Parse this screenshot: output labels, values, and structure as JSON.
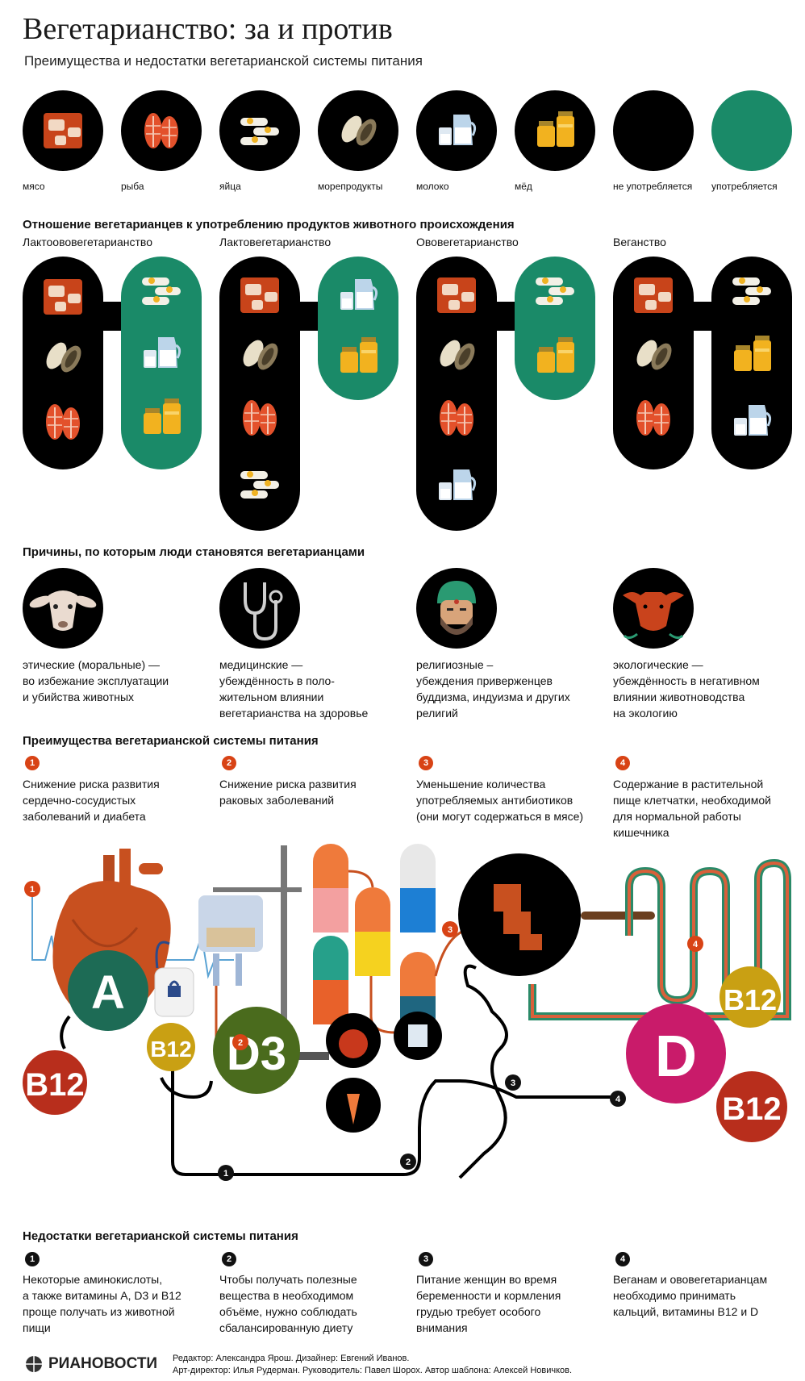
{
  "title": "Вегетарианство: за и против",
  "subtitle": "Преимущества и недостатки вегетарианской системы питания",
  "legend": {
    "items": [
      {
        "label": "мясо",
        "icon": "meat-icon"
      },
      {
        "label": "рыба",
        "icon": "fish-icon"
      },
      {
        "label": "яйца",
        "icon": "eggs-icon"
      },
      {
        "label": "морепродукты",
        "icon": "seafood-icon"
      },
      {
        "label": "молоко",
        "icon": "milk-icon"
      },
      {
        "label": "мёд",
        "icon": "honey-icon"
      },
      {
        "label": "не употребляется",
        "icon": "black-circle",
        "color": "#000000"
      },
      {
        "label": "употребляется",
        "icon": "green-circle",
        "color": "#1a8a68"
      }
    ]
  },
  "attitude": {
    "heading": "Отношение вегетарианцев к употреблению продуктов животного происхождения",
    "types": [
      {
        "name": "Лактоововегетарианство",
        "excluded": [
          "meat",
          "seafood",
          "fish"
        ],
        "included": [
          "eggs",
          "milk",
          "honey"
        ]
      },
      {
        "name": "Лактовегетарианство",
        "excluded": [
          "meat",
          "seafood",
          "fish",
          "eggs"
        ],
        "included": [
          "milk",
          "honey"
        ]
      },
      {
        "name": "Ововегетарианство",
        "excluded": [
          "meat",
          "seafood",
          "fish",
          "milk"
        ],
        "included": [
          "eggs",
          "honey"
        ]
      },
      {
        "name": "Веганство",
        "excluded": [
          "meat",
          "seafood",
          "fish"
        ],
        "included": [
          "eggs",
          "honey",
          "milk"
        ]
      }
    ]
  },
  "reasons": {
    "heading": "Причины, по которым люди становятся вегетарианцами",
    "items": [
      {
        "icon": "lamb-icon",
        "lines": [
          "этические (моральные) —",
          "во избежание эксплуатации",
          "и убийства животных"
        ]
      },
      {
        "icon": "stethoscope-icon",
        "lines": [
          "медицинские —",
          "убеждённость в поло-",
          "жительном влиянии",
          "вегетарианства на здоровье"
        ]
      },
      {
        "icon": "monk-icon",
        "lines": [
          "религиозные –",
          "убеждения приверженцев",
          "буддизма, индуизма и других",
          "религий"
        ]
      },
      {
        "icon": "cow-icon",
        "lines": [
          "экологические —",
          "убеждённость в негативном",
          "влиянии животноводства",
          "на экологию"
        ]
      }
    ]
  },
  "advantages": {
    "heading": "Преимущества вегетарианской системы питания",
    "items": [
      {
        "num": "1",
        "lines": [
          "Снижение риска развития",
          "сердечно-сосудистых",
          "заболеваний и диабета"
        ]
      },
      {
        "num": "2",
        "lines": [
          "Снижение риска развития",
          "раковых заболеваний"
        ]
      },
      {
        "num": "3",
        "lines": [
          "Уменьшение количества",
          "употребляемых антибиотиков",
          "(они могут содержаться в мясе)"
        ]
      },
      {
        "num": "4",
        "lines": [
          "Содержание в растительной",
          "пище клетчатки, необходимой",
          "для нормальной работы",
          "кишечника"
        ]
      }
    ]
  },
  "illustration": {
    "markers_orange": [
      "1",
      "2",
      "3",
      "4"
    ],
    "markers_dark": [
      "1",
      "2",
      "3",
      "4"
    ],
    "vitamins": [
      {
        "label": "A",
        "color": "#1d6b55"
      },
      {
        "label": "B12",
        "color": "#c9a013"
      },
      {
        "label": "D3",
        "color": "#4a6b1d"
      },
      {
        "label": "B12",
        "color": "#b82e1c"
      },
      {
        "label": "D",
        "color": "#c91b6a"
      },
      {
        "label": "B12",
        "color": "#c9a013"
      },
      {
        "label": "B12",
        "color": "#b82e1c"
      }
    ]
  },
  "disadvantages": {
    "heading": "Недостатки вегетарианской системы питания",
    "items": [
      {
        "num": "1",
        "lines": [
          "Некоторые аминокислоты,",
          "а также витамины A, D3 и B12",
          "проще получать из животной",
          "пищи"
        ]
      },
      {
        "num": "2",
        "lines": [
          "Чтобы получать полезные",
          "вещества в необходимом",
          "объёме, нужно соблюдать",
          "сбалансированную диету"
        ]
      },
      {
        "num": "3",
        "lines": [
          "Питание женщин во время",
          "беременности и кормления",
          "грудью требует особого",
          "внимания"
        ]
      },
      {
        "num": "4",
        "lines": [
          "Веганам и ововегетарианцам",
          "необходимо принимать",
          "кальций, витамины B12 и D"
        ]
      }
    ]
  },
  "footer": {
    "logo": "РИАНОВОСТИ",
    "line1": "Редактор: Александра Ярош. Дизайнер: Евгений Иванов.",
    "line2": "Арт-директор: Илья Рудерман. Руководитель: Павел Шорох. Автор шаблона: Алексей Новичков."
  }
}
